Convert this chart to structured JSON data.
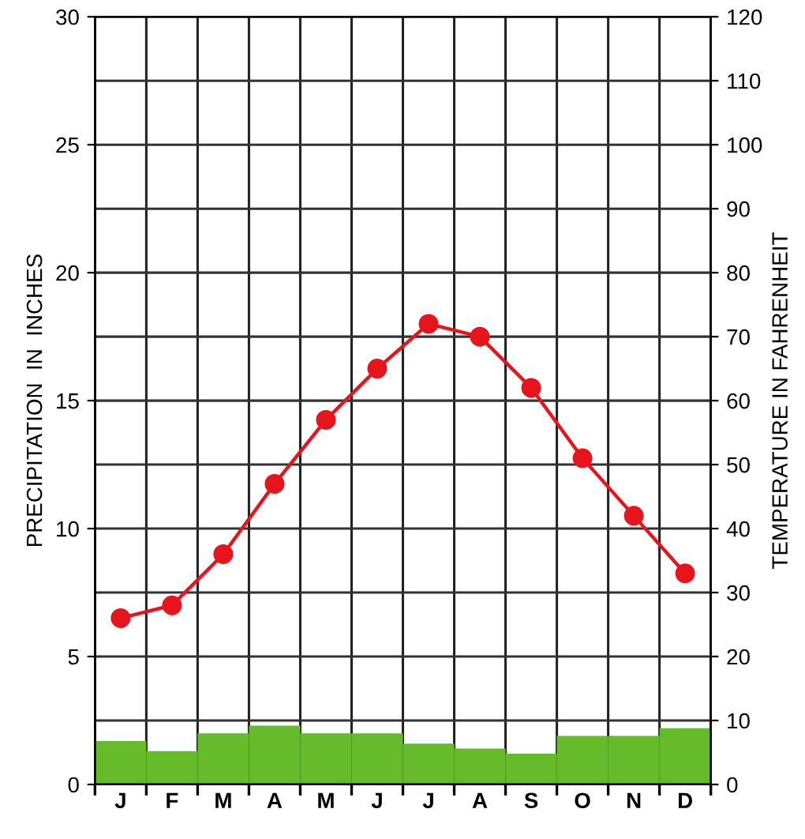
{
  "chart_data": {
    "type": "bar",
    "ylabel": "PRECIPITATION  IN  INCHES",
    "y2label": "TEMPERATURE IN FAHRENHEIT",
    "categories": [
      "J",
      "F",
      "M",
      "A",
      "M",
      "J",
      "J",
      "A",
      "S",
      "O",
      "N",
      "D"
    ],
    "series": [
      {
        "color": "#66bb2a",
        "values": [
          1.7,
          1.3,
          2.0,
          2.3,
          2.0,
          2.0,
          1.6,
          1.4,
          1.2,
          1.9,
          1.9,
          2.2
        ]
      },
      {
        "type": "line",
        "axis": "y2",
        "color": "#e8141c",
        "marker": "circle",
        "line_style": "solid",
        "values": [
          26,
          28,
          36,
          47,
          57,
          65,
          72,
          70,
          62,
          51,
          42,
          33
        ]
      }
    ],
    "ylim": [
      0,
      30
    ],
    "yticks": [
      0,
      5,
      10,
      15,
      20,
      25,
      30
    ],
    "y2lim": [
      0,
      120
    ],
    "y2ticks": [
      0,
      10,
      20,
      30,
      40,
      50,
      60,
      70,
      80,
      90,
      100,
      110,
      120
    ],
    "grid": true,
    "legend": false
  }
}
